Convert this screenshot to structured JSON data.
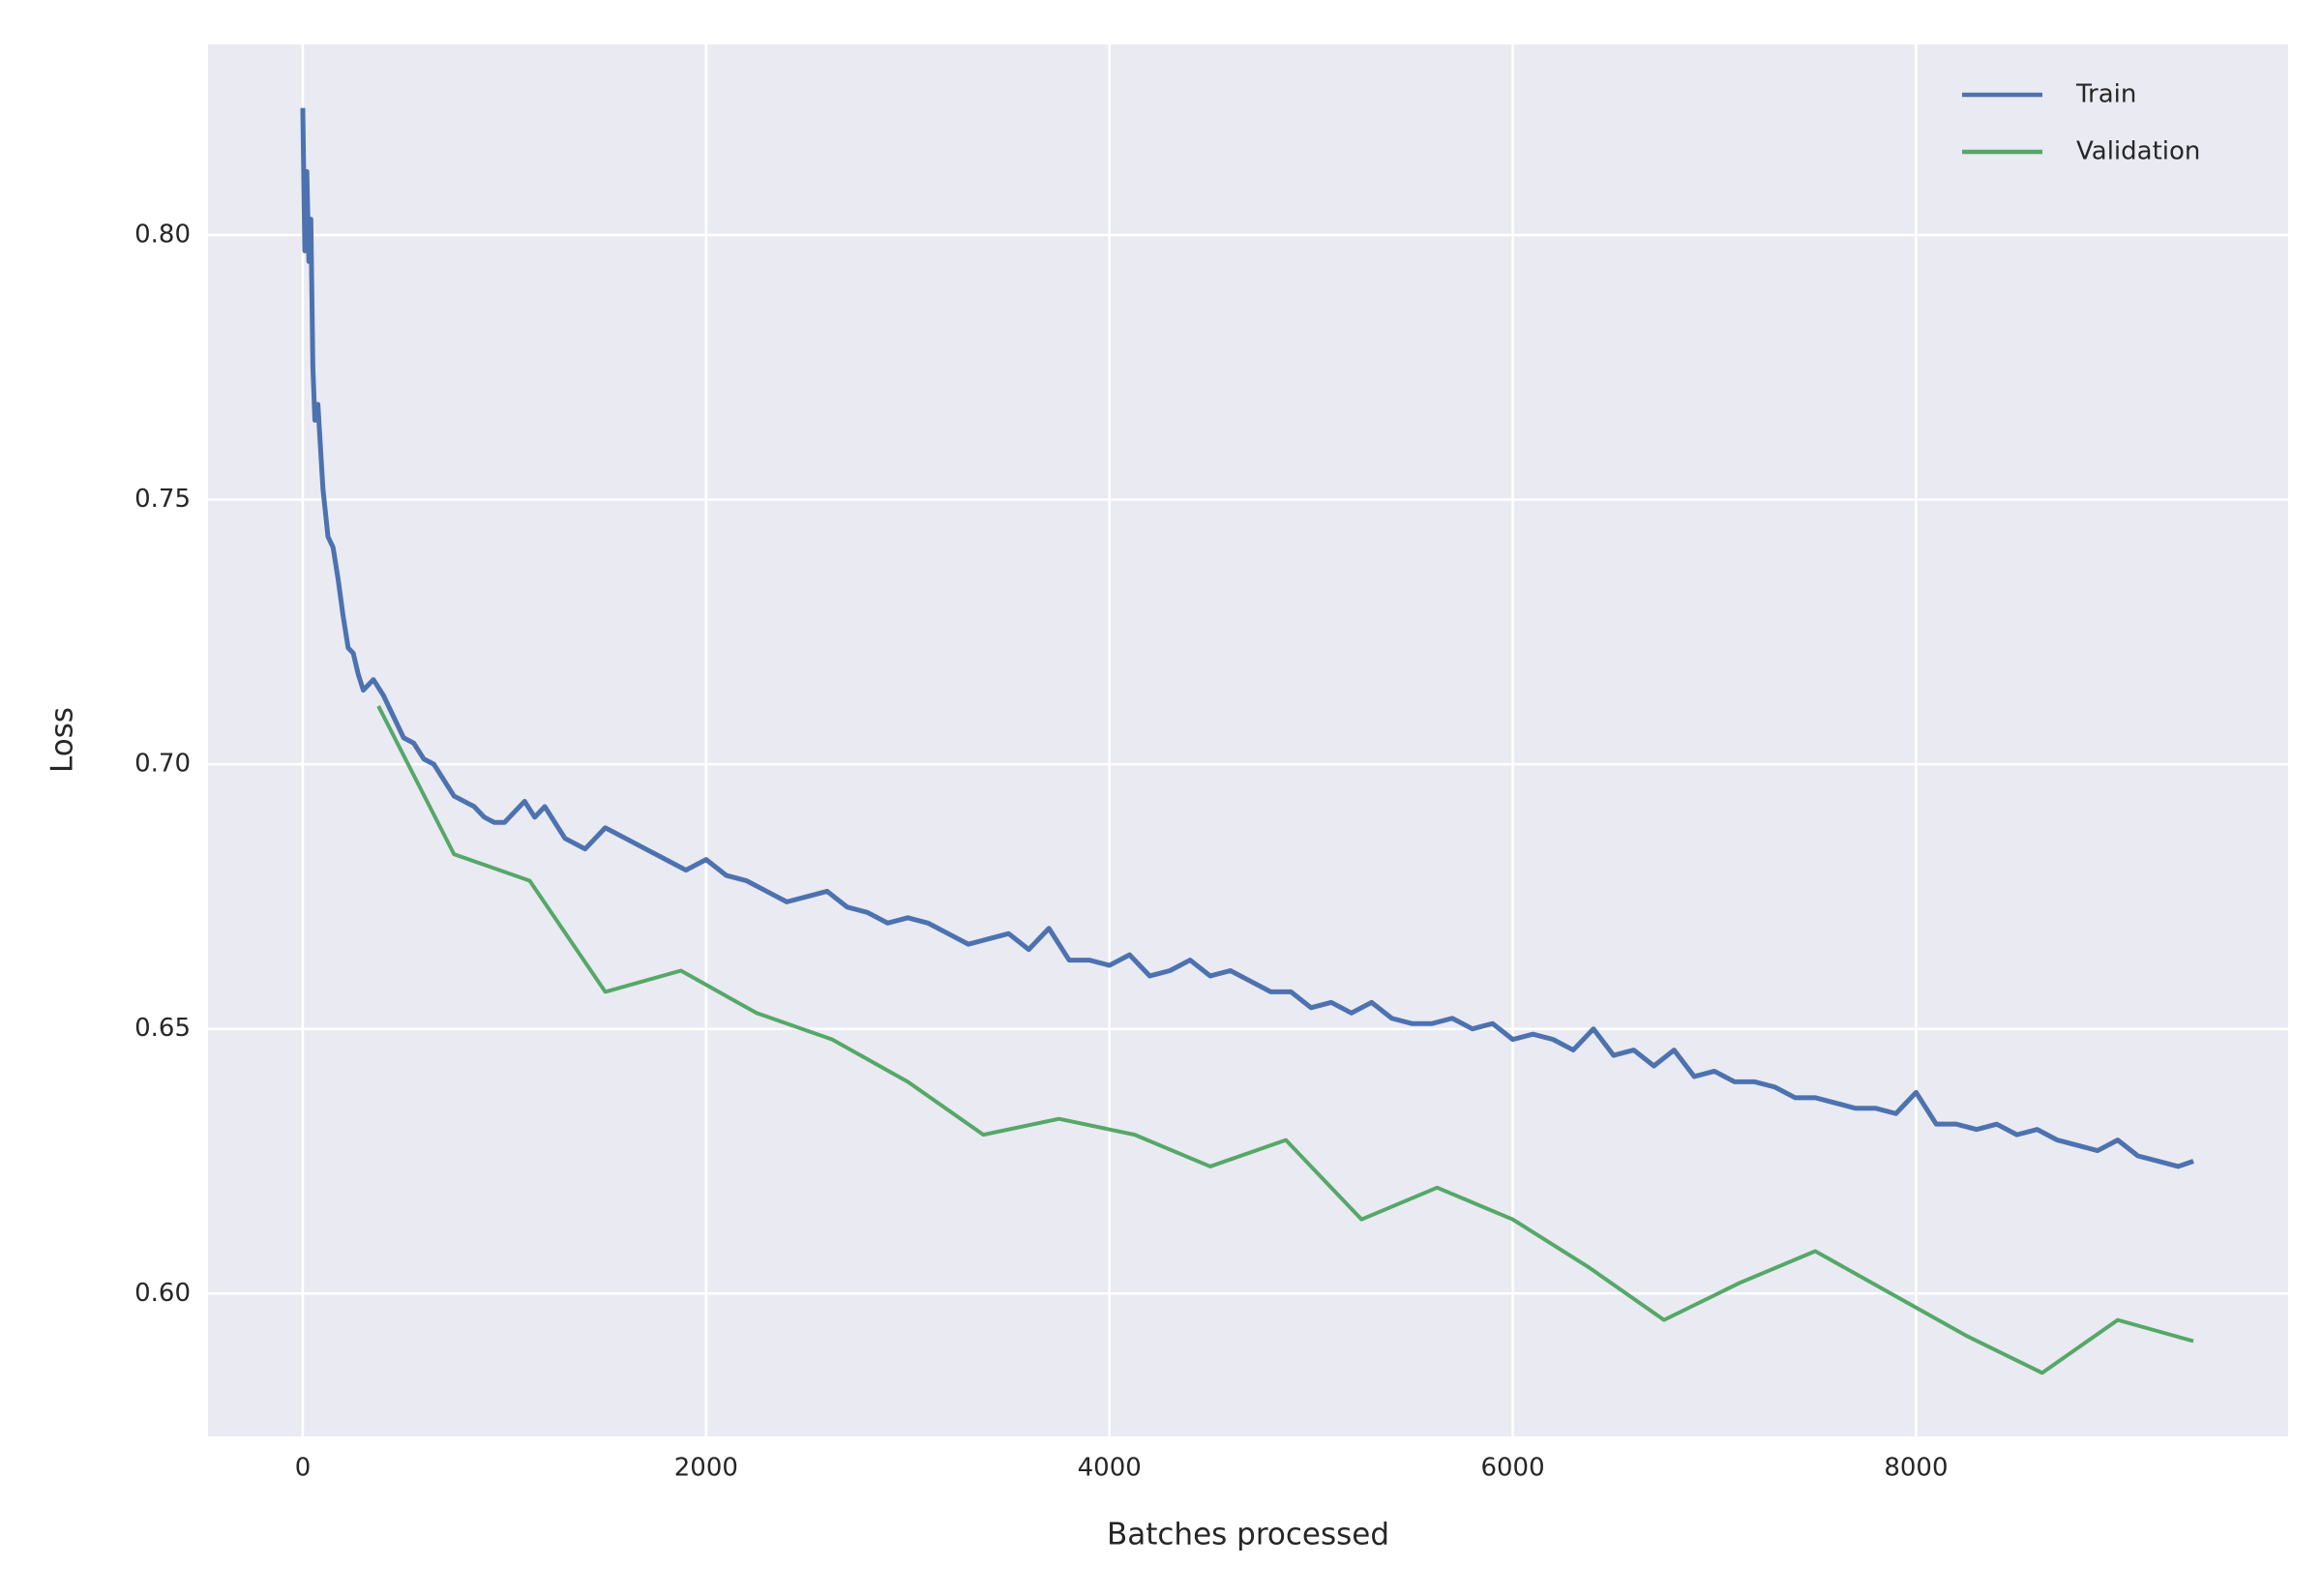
{
  "chart_data": {
    "type": "line",
    "xlabel": "Batches processed",
    "ylabel": "Loss",
    "xlim": [
      -470,
      9845
    ],
    "ylim": [
      0.573,
      0.836
    ],
    "xticks": [
      0,
      2000,
      4000,
      6000,
      8000
    ],
    "yticks": [
      {
        "value": 0.6,
        "label": "0.60"
      },
      0.65,
      {
        "value": 0.7,
        "label": "0.70"
      },
      0.75,
      {
        "value": 0.8,
        "label": "0.80"
      }
    ],
    "grid": true,
    "legend": "upper right",
    "series": [
      {
        "name": "Train",
        "color": "#4c72b0",
        "x": [
          0,
          10,
          20,
          30,
          40,
          50,
          60,
          75,
          100,
          125,
          150,
          175,
          200,
          225,
          250,
          275,
          300,
          350,
          400,
          450,
          500,
          550,
          600,
          650,
          700,
          750,
          800,
          850,
          900,
          950,
          1000,
          1100,
          1150,
          1200,
          1300,
          1400,
          1500,
          1600,
          1700,
          1800,
          1900,
          2000,
          2100,
          2200,
          2300,
          2400,
          2500,
          2600,
          2700,
          2800,
          2900,
          3000,
          3100,
          3200,
          3300,
          3400,
          3500,
          3600,
          3700,
          3800,
          3900,
          4000,
          4100,
          4200,
          4300,
          4400,
          4500,
          4600,
          4700,
          4800,
          4900,
          5000,
          5100,
          5200,
          5300,
          5400,
          5500,
          5600,
          5700,
          5800,
          5900,
          6000,
          6100,
          6200,
          6300,
          6400,
          6500,
          6600,
          6700,
          6800,
          6900,
          7000,
          7100,
          7200,
          7300,
          7400,
          7500,
          7600,
          7700,
          7800,
          7900,
          8000,
          8100,
          8200,
          8300,
          8400,
          8500,
          8600,
          8700,
          8800,
          8900,
          9000,
          9100,
          9200,
          9300,
          9375
        ],
        "values": [
          0.824,
          0.797,
          0.812,
          0.795,
          0.803,
          0.775,
          0.765,
          0.768,
          0.752,
          0.743,
          0.741,
          0.735,
          0.728,
          0.722,
          0.721,
          0.717,
          0.714,
          0.716,
          0.713,
          0.709,
          0.705,
          0.704,
          0.701,
          0.7,
          0.697,
          0.694,
          0.693,
          0.692,
          0.69,
          0.689,
          0.689,
          0.693,
          0.69,
          0.692,
          0.686,
          0.684,
          0.688,
          0.686,
          0.684,
          0.682,
          0.68,
          0.682,
          0.679,
          0.678,
          0.676,
          0.674,
          0.675,
          0.676,
          0.673,
          0.672,
          0.67,
          0.671,
          0.67,
          0.668,
          0.666,
          0.667,
          0.668,
          0.665,
          0.669,
          0.663,
          0.663,
          0.662,
          0.664,
          0.66,
          0.661,
          0.663,
          0.66,
          0.661,
          0.659,
          0.657,
          0.657,
          0.654,
          0.655,
          0.653,
          0.655,
          0.652,
          0.651,
          0.651,
          0.652,
          0.65,
          0.651,
          0.648,
          0.649,
          0.648,
          0.646,
          0.65,
          0.645,
          0.646,
          0.643,
          0.646,
          0.641,
          0.642,
          0.64,
          0.64,
          0.639,
          0.637,
          0.637,
          0.636,
          0.635,
          0.635,
          0.634,
          0.638,
          0.632,
          0.632,
          0.631,
          0.632,
          0.63,
          0.631,
          0.629,
          0.628,
          0.627,
          0.629,
          0.626,
          0.625,
          0.624,
          0.625
        ]
      },
      {
        "name": "Validation",
        "color": "#55a868",
        "x": [
          375,
          750,
          1125,
          1500,
          1875,
          2250,
          2625,
          3000,
          3375,
          3750,
          4125,
          4500,
          4875,
          5250,
          5625,
          6000,
          6375,
          6750,
          7125,
          7500,
          7875,
          8250,
          8625,
          9000,
          9375
        ],
        "values": [
          0.711,
          0.683,
          0.678,
          0.657,
          0.661,
          0.653,
          0.648,
          0.64,
          0.63,
          0.633,
          0.63,
          0.624,
          0.629,
          0.614,
          0.62,
          0.614,
          0.605,
          0.595,
          0.602,
          0.608,
          0.6,
          0.592,
          0.585,
          0.595,
          0.591
        ]
      }
    ]
  }
}
